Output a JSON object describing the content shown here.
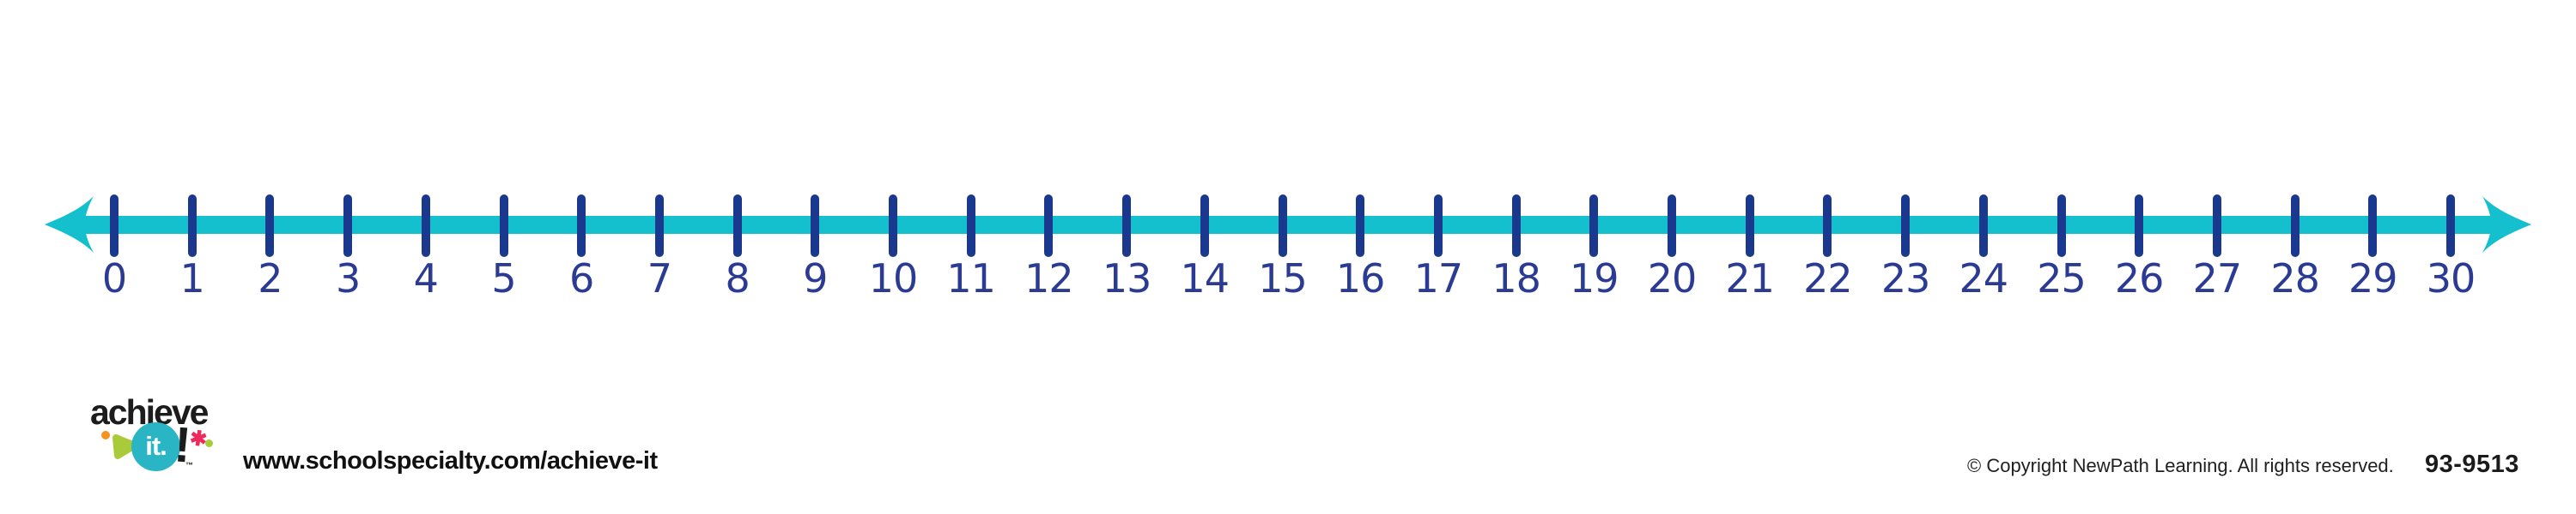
{
  "number_line": {
    "min": 0,
    "max": 30,
    "step": 1,
    "labels": [
      "0",
      "1",
      "2",
      "3",
      "4",
      "5",
      "6",
      "7",
      "8",
      "9",
      "10",
      "11",
      "12",
      "13",
      "14",
      "15",
      "16",
      "17",
      "18",
      "19",
      "20",
      "21",
      "22",
      "23",
      "24",
      "25",
      "26",
      "27",
      "28",
      "29",
      "30"
    ],
    "line_color": "#14BFCE",
    "tick_color": "#19388E",
    "label_color": "#2B3A92"
  },
  "branding": {
    "logo": {
      "word": "achieve",
      "it": "it.",
      "exclamation": "!",
      "trademark": "™",
      "circle_color": "#2AB5C5",
      "text_color": "#1C1C1C",
      "accent_orange": "#F6921E",
      "accent_green": "#A9CB3A",
      "accent_pink": "#EC2B5C"
    },
    "website": "www.schoolspecialty.com/achieve-it"
  },
  "footer": {
    "copyright": "© Copyright NewPath Learning. All rights reserved.",
    "product_code": "93-9513"
  }
}
